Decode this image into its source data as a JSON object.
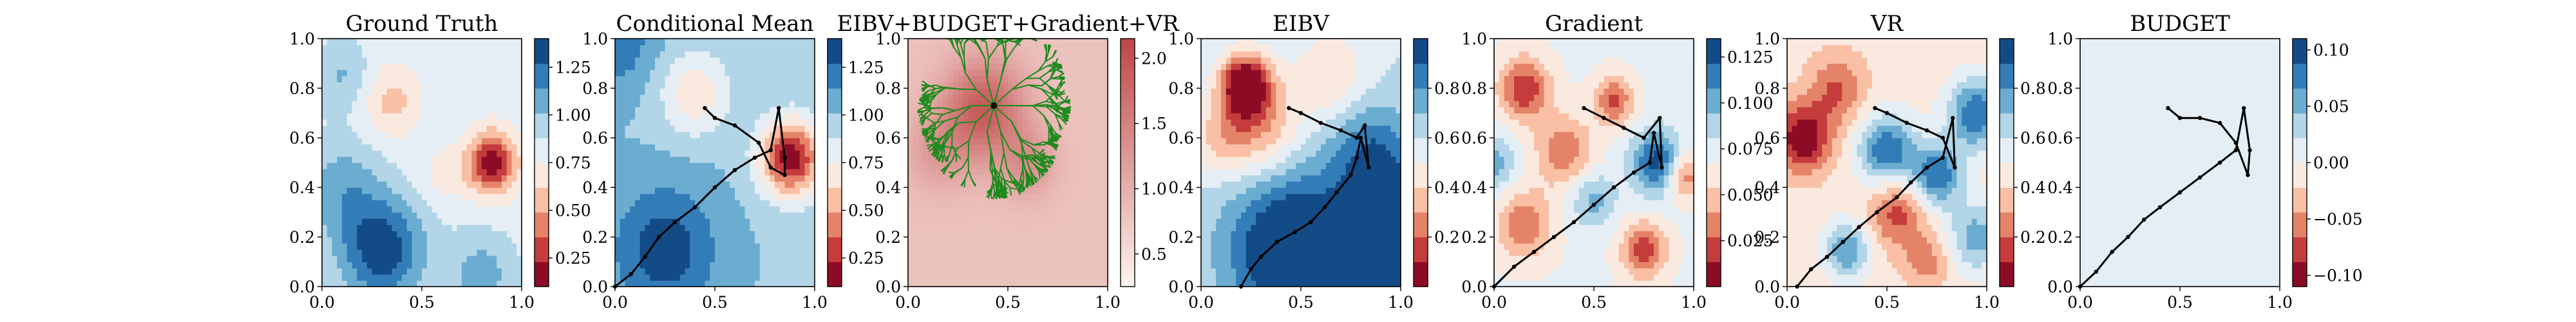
{
  "figure": {
    "background": "#ffffff"
  },
  "chart_data": [
    {
      "type": "heatmap",
      "title": "Ground Truth",
      "xlim": [
        0,
        1
      ],
      "ylim": [
        0,
        1
      ],
      "x_ticks": [
        "0.0",
        "0.5",
        "1.0"
      ],
      "y_ticks": [
        "0.0",
        "0.2",
        "0.4",
        "0.6",
        "0.8",
        "1.0"
      ],
      "colormap": "RdBu",
      "colorbar": {
        "ticks": [
          "0.25",
          "0.50",
          "0.75",
          "1.00",
          "1.25"
        ],
        "min": 0.1,
        "max": 1.4,
        "bins": 10
      },
      "field": {
        "bg": 0.82,
        "blobs": [
          {
            "x": 0.85,
            "y": 0.5,
            "amp": -0.65,
            "s": 0.09
          },
          {
            "x": 0.35,
            "y": 0.75,
            "amp": -0.25,
            "s": 0.1
          },
          {
            "x": 0.6,
            "y": 0.45,
            "amp": -0.12,
            "s": 0.08
          },
          {
            "x": 0.3,
            "y": 0.15,
            "amp": 0.55,
            "s": 0.15
          },
          {
            "x": 0.1,
            "y": 0.4,
            "amp": 0.25,
            "s": 0.14
          },
          {
            "x": 0.1,
            "y": 0.85,
            "amp": 0.2,
            "s": 0.1
          },
          {
            "x": 0.8,
            "y": 0.05,
            "amp": 0.25,
            "s": 0.12
          }
        ]
      },
      "path": []
    },
    {
      "type": "heatmap",
      "title": "Conditional Mean",
      "xlim": [
        0,
        1
      ],
      "ylim": [
        0,
        1
      ],
      "x_ticks": [
        "0.0",
        "0.5",
        "1.0"
      ],
      "y_ticks": [
        "0.0",
        "0.2",
        "0.4",
        "0.6",
        "0.8",
        "1.0"
      ],
      "colormap": "RdBu",
      "colorbar": {
        "ticks": [
          "0.25",
          "0.50",
          "0.75",
          "1.00",
          "1.25"
        ],
        "min": 0.1,
        "max": 1.4,
        "bins": 10
      },
      "field": {
        "bg": 1.0,
        "blobs": [
          {
            "x": 0.88,
            "y": 0.52,
            "amp": -0.85,
            "s": 0.11
          },
          {
            "x": 0.4,
            "y": 0.78,
            "amp": -0.35,
            "s": 0.12
          },
          {
            "x": 0.25,
            "y": 0.15,
            "amp": 0.35,
            "s": 0.18
          },
          {
            "x": 0.0,
            "y": 1.0,
            "amp": 0.25,
            "s": 0.14
          }
        ]
      },
      "path": [
        [
          0.0,
          0.0
        ],
        [
          0.08,
          0.05
        ],
        [
          0.15,
          0.12
        ],
        [
          0.22,
          0.2
        ],
        [
          0.3,
          0.26
        ],
        [
          0.4,
          0.32
        ],
        [
          0.5,
          0.4
        ],
        [
          0.6,
          0.47
        ],
        [
          0.7,
          0.52
        ],
        [
          0.78,
          0.55
        ],
        [
          0.82,
          0.72
        ],
        [
          0.85,
          0.52
        ],
        [
          0.85,
          0.45
        ],
        [
          0.78,
          0.48
        ],
        [
          0.72,
          0.58
        ],
        [
          0.6,
          0.65
        ],
        [
          0.5,
          0.68
        ],
        [
          0.45,
          0.72
        ]
      ]
    },
    {
      "type": "heatmap",
      "title": "EIBV+BUDGET+Gradient+VR",
      "xlim": [
        0,
        1
      ],
      "ylim": [
        0,
        1
      ],
      "x_ticks": [
        "0.0",
        "0.5",
        "1.0"
      ],
      "y_ticks": [
        "0.0",
        "0.2",
        "0.4",
        "0.6",
        "0.8",
        "1.0"
      ],
      "colormap": "Reds",
      "colorbar": {
        "ticks": [
          "0.5",
          "1.0",
          "1.5",
          "2.0"
        ],
        "min": 0.25,
        "max": 2.15,
        "bins": 1
      },
      "field": {
        "bg": 0.8,
        "blobs": [
          {
            "x": 0.38,
            "y": 0.72,
            "amp": 1.1,
            "s": 0.14
          },
          {
            "x": 0.15,
            "y": 0.55,
            "amp": 0.4,
            "s": 0.12
          },
          {
            "x": 0.6,
            "y": 0.5,
            "amp": 0.5,
            "s": 0.1
          }
        ]
      },
      "tree_root": [
        0.43,
        0.73
      ],
      "path": []
    },
    {
      "type": "heatmap",
      "title": "EIBV",
      "xlim": [
        0,
        1
      ],
      "ylim": [
        0,
        1
      ],
      "x_ticks": [
        "0.0",
        "0.5",
        "1.0"
      ],
      "y_ticks": [
        "0.0",
        "0.2",
        "0.4",
        "0.6",
        "0.8",
        "1.0"
      ],
      "colormap": "RdBu",
      "colorbar": {
        "ticks": [
          "0.2",
          "0.4",
          "0.6",
          "0.8"
        ],
        "min": 0.0,
        "max": 1.0,
        "bins": 10
      },
      "field": {
        "bg": 0.6,
        "blobs": [
          {
            "x": 0.22,
            "y": 0.82,
            "amp": -0.6,
            "s": 0.09
          },
          {
            "x": 0.3,
            "y": 0.65,
            "amp": -0.3,
            "s": 0.14
          },
          {
            "x": 0.65,
            "y": 0.85,
            "amp": -0.2,
            "s": 0.13
          },
          {
            "x": 0.1,
            "y": 0.6,
            "amp": -0.2,
            "s": 0.11
          },
          {
            "x": 0.45,
            "y": 0.15,
            "amp": 0.5,
            "s": 0.22
          },
          {
            "x": 1.0,
            "y": 0.15,
            "amp": 0.5,
            "s": 0.22
          },
          {
            "x": 0.85,
            "y": 0.55,
            "amp": 0.25,
            "s": 0.14
          }
        ]
      },
      "path": [
        [
          0.2,
          0.0
        ],
        [
          0.25,
          0.07
        ],
        [
          0.3,
          0.12
        ],
        [
          0.38,
          0.18
        ],
        [
          0.47,
          0.22
        ],
        [
          0.55,
          0.26
        ],
        [
          0.62,
          0.32
        ],
        [
          0.68,
          0.38
        ],
        [
          0.75,
          0.45
        ],
        [
          0.78,
          0.52
        ],
        [
          0.8,
          0.6
        ],
        [
          0.84,
          0.48
        ],
        [
          0.82,
          0.65
        ],
        [
          0.78,
          0.6
        ],
        [
          0.7,
          0.63
        ],
        [
          0.6,
          0.66
        ],
        [
          0.5,
          0.7
        ],
        [
          0.44,
          0.72
        ]
      ]
    },
    {
      "type": "heatmap",
      "title": "Gradient",
      "xlim": [
        0,
        1
      ],
      "ylim": [
        0,
        1
      ],
      "x_ticks": [
        "0.0",
        "0.5",
        "1.0"
      ],
      "y_ticks": [
        "0.0",
        "0.2",
        "0.4",
        "0.6",
        "0.8",
        "1.0"
      ],
      "colormap": "RdBu",
      "colorbar": {
        "ticks": [
          "0.025",
          "0.050",
          "0.075",
          "0.100",
          "0.125"
        ],
        "min": 0.0,
        "max": 0.135,
        "bins": 10
      },
      "field": {
        "bg": 0.07,
        "blobs": [
          {
            "x": 0.15,
            "y": 0.8,
            "amp": -0.055,
            "s": 0.09
          },
          {
            "x": 0.35,
            "y": 0.55,
            "amp": -0.04,
            "s": 0.1
          },
          {
            "x": 0.6,
            "y": 0.75,
            "amp": -0.045,
            "s": 0.07
          },
          {
            "x": 0.15,
            "y": 0.25,
            "amp": -0.04,
            "s": 0.1
          },
          {
            "x": 0.75,
            "y": 0.15,
            "amp": -0.05,
            "s": 0.08
          },
          {
            "x": 0.95,
            "y": 0.45,
            "amp": -0.045,
            "s": 0.07
          },
          {
            "x": 0.82,
            "y": 0.5,
            "amp": 0.06,
            "s": 0.09
          },
          {
            "x": 0.5,
            "y": 0.35,
            "amp": 0.03,
            "s": 0.08
          },
          {
            "x": 0.0,
            "y": 0.5,
            "amp": 0.03,
            "s": 0.08
          }
        ]
      },
      "path": [
        [
          0.0,
          0.0
        ],
        [
          0.1,
          0.08
        ],
        [
          0.2,
          0.14
        ],
        [
          0.3,
          0.2
        ],
        [
          0.4,
          0.26
        ],
        [
          0.5,
          0.33
        ],
        [
          0.6,
          0.4
        ],
        [
          0.7,
          0.46
        ],
        [
          0.78,
          0.5
        ],
        [
          0.8,
          0.62
        ],
        [
          0.84,
          0.48
        ],
        [
          0.83,
          0.68
        ],
        [
          0.75,
          0.6
        ],
        [
          0.65,
          0.64
        ],
        [
          0.55,
          0.68
        ],
        [
          0.45,
          0.72
        ]
      ]
    },
    {
      "type": "heatmap",
      "title": "VR",
      "xlim": [
        0,
        1
      ],
      "ylim": [
        0,
        1
      ],
      "x_ticks": [
        "0.0",
        "0.5",
        "1.0"
      ],
      "y_ticks": [
        "0.0",
        "0.2",
        "0.4",
        "0.6",
        "0.8",
        "1.0"
      ],
      "colormap": "RdBu",
      "colorbar": {
        "ticks": [
          "0.2",
          "0.4",
          "0.6",
          "0.8"
        ],
        "min": 0.0,
        "max": 1.0,
        "bins": 10
      },
      "field": {
        "bg": 0.45,
        "blobs": [
          {
            "x": 0.08,
            "y": 0.6,
            "amp": -0.45,
            "s": 0.1
          },
          {
            "x": 0.25,
            "y": 0.8,
            "amp": -0.25,
            "s": 0.1
          },
          {
            "x": 0.55,
            "y": 0.3,
            "amp": -0.3,
            "s": 0.1
          },
          {
            "x": 0.7,
            "y": 0.1,
            "amp": -0.2,
            "s": 0.08
          },
          {
            "x": 0.5,
            "y": 0.55,
            "amp": 0.45,
            "s": 0.1
          },
          {
            "x": 0.75,
            "y": 0.45,
            "amp": 0.45,
            "s": 0.09
          },
          {
            "x": 0.95,
            "y": 0.7,
            "amp": 0.45,
            "s": 0.1
          },
          {
            "x": 0.3,
            "y": 0.15,
            "amp": 0.35,
            "s": 0.08
          },
          {
            "x": 0.95,
            "y": 0.2,
            "amp": 0.3,
            "s": 0.1
          }
        ]
      },
      "path": [
        [
          0.05,
          0.0
        ],
        [
          0.12,
          0.07
        ],
        [
          0.2,
          0.12
        ],
        [
          0.28,
          0.18
        ],
        [
          0.36,
          0.24
        ],
        [
          0.45,
          0.3
        ],
        [
          0.55,
          0.36
        ],
        [
          0.62,
          0.42
        ],
        [
          0.7,
          0.48
        ],
        [
          0.78,
          0.52
        ],
        [
          0.83,
          0.68
        ],
        [
          0.84,
          0.48
        ],
        [
          0.78,
          0.6
        ],
        [
          0.7,
          0.63
        ],
        [
          0.6,
          0.66
        ],
        [
          0.5,
          0.7
        ],
        [
          0.44,
          0.72
        ]
      ]
    },
    {
      "type": "heatmap",
      "title": "BUDGET",
      "xlim": [
        0,
        1
      ],
      "ylim": [
        0,
        1
      ],
      "x_ticks": [
        "0.0",
        "0.5",
        "1.0"
      ],
      "y_ticks": [
        "0.0",
        "0.2",
        "0.4",
        "0.6",
        "0.8",
        "1.0"
      ],
      "colormap": "RdBu",
      "colorbar": {
        "ticks": [
          "−0.10",
          "−0.05",
          "0.00",
          "0.05",
          "0.10"
        ],
        "min": -0.11,
        "max": 0.11,
        "bins": 10
      },
      "field": {
        "bg": 0.0,
        "blobs": []
      },
      "path": [
        [
          0.0,
          0.0
        ],
        [
          0.08,
          0.06
        ],
        [
          0.16,
          0.14
        ],
        [
          0.24,
          0.2
        ],
        [
          0.32,
          0.27
        ],
        [
          0.4,
          0.32
        ],
        [
          0.5,
          0.38
        ],
        [
          0.6,
          0.44
        ],
        [
          0.7,
          0.5
        ],
        [
          0.78,
          0.55
        ],
        [
          0.82,
          0.72
        ],
        [
          0.85,
          0.55
        ],
        [
          0.84,
          0.45
        ],
        [
          0.78,
          0.58
        ],
        [
          0.7,
          0.66
        ],
        [
          0.6,
          0.68
        ],
        [
          0.5,
          0.68
        ],
        [
          0.44,
          0.72
        ]
      ]
    }
  ]
}
